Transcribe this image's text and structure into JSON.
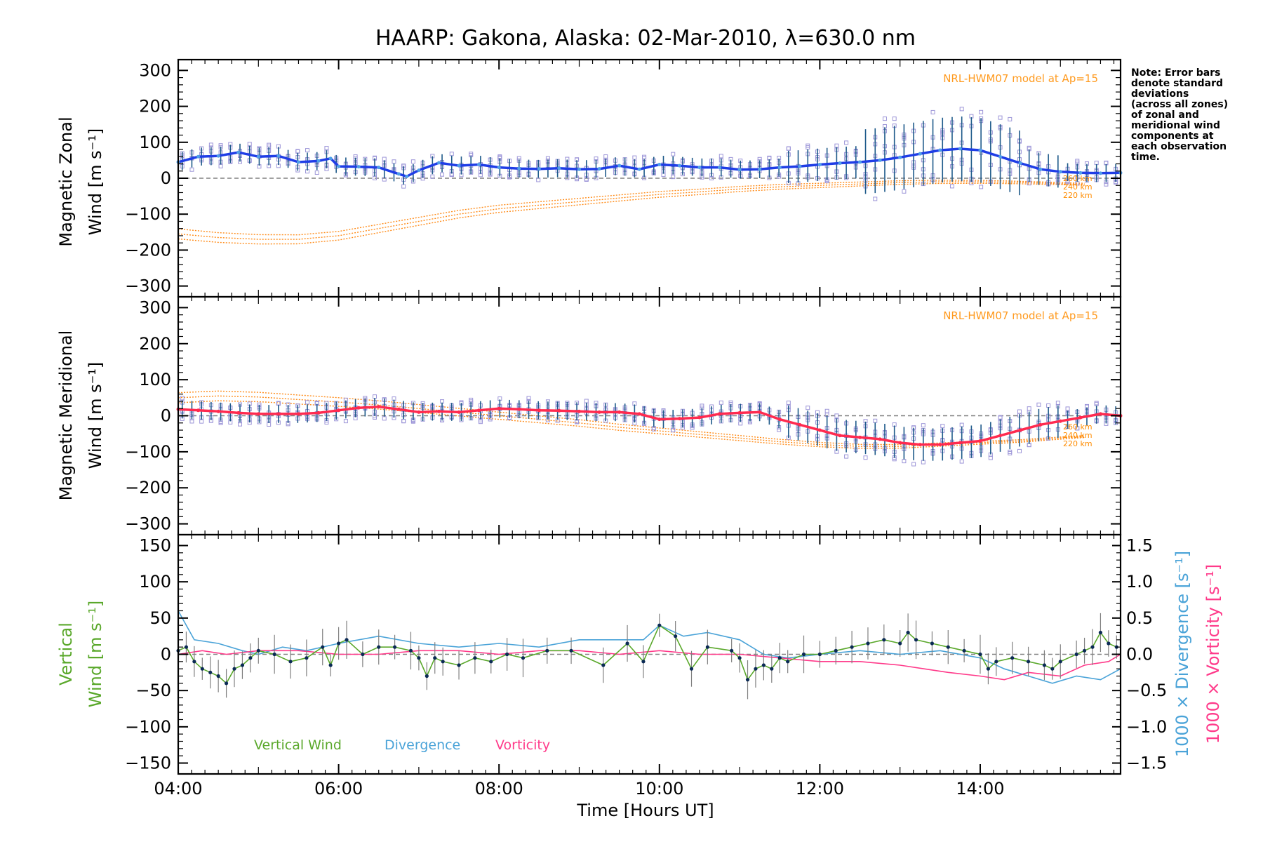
{
  "title": "HAARP: Gakona,  Alaska: 02-Mar-2010, λ=630.0 nm",
  "note": [
    "Note: Error bars",
    "denote standard",
    "deviations",
    "(across all zones)",
    "of zonal and",
    "meridional wind",
    "components at",
    "each observation",
    "time."
  ],
  "colors": {
    "zonal": "#1f3de6",
    "zonal_light": "#4f9ee8",
    "meridional": "#ff2a4f",
    "model": "#ff8c1a",
    "zone_points": "#9d96d8",
    "vertical": "#5aa82b",
    "divergence": "#4aa3d8",
    "vorticity": "#ff3a8a",
    "errorbar_zonal": "#1e5a8a",
    "errorbar_vertical": "#808080"
  },
  "chart_data": [
    {
      "type": "line",
      "panel": "zonal",
      "xlabel": "",
      "ylabel_lines": [
        "Magnetic Zonal",
        "Wind [m s⁻¹]"
      ],
      "xlim": [
        4.0,
        15.75
      ],
      "ylim": [
        -330,
        330
      ],
      "yticks": [
        -300,
        -200,
        -100,
        0,
        100,
        200,
        300
      ],
      "model_label": "NRL-HWM07 model at Ap=15",
      "alt_labels": [
        "260 km",
        "240 km",
        "220 km"
      ],
      "series": [
        {
          "role": "mean",
          "x": [
            4.0,
            4.25,
            4.5,
            4.75,
            5.0,
            5.25,
            5.5,
            5.75,
            5.9,
            6.0,
            6.25,
            6.5,
            6.75,
            6.85,
            7.0,
            7.25,
            7.5,
            7.75,
            8.0,
            8.25,
            8.5,
            8.75,
            9.0,
            9.25,
            9.5,
            9.75,
            10.0,
            10.25,
            10.5,
            10.75,
            11.0,
            11.25,
            11.5,
            11.75,
            12.0,
            12.25,
            12.5,
            12.75,
            13.0,
            13.25,
            13.5,
            13.75,
            14.0,
            14.25,
            14.5,
            14.75,
            15.0,
            15.25,
            15.5,
            15.75
          ],
          "y": [
            45,
            60,
            62,
            72,
            60,
            62,
            45,
            48,
            55,
            33,
            32,
            30,
            12,
            5,
            22,
            43,
            35,
            38,
            30,
            27,
            26,
            28,
            25,
            26,
            35,
            25,
            38,
            35,
            30,
            30,
            24,
            25,
            30,
            33,
            38,
            42,
            45,
            50,
            58,
            68,
            78,
            82,
            78,
            60,
            42,
            25,
            18,
            15,
            14,
            15
          ]
        },
        {
          "role": "model",
          "x": [
            4.0,
            4.5,
            5.0,
            5.5,
            6.0,
            6.5,
            7.0,
            7.5,
            8.0,
            8.5,
            9.0,
            9.5,
            10.0,
            10.5,
            11.0,
            11.5,
            12.0,
            12.5,
            13.0,
            13.5,
            14.0,
            14.5,
            15.0,
            15.5
          ],
          "y": [
            -155,
            -165,
            -170,
            -170,
            -160,
            -140,
            -120,
            -100,
            -85,
            -75,
            -65,
            -55,
            -45,
            -38,
            -30,
            -24,
            -20,
            -16,
            -12,
            -10,
            -10,
            -12,
            -15,
            -18
          ]
        }
      ]
    },
    {
      "type": "line",
      "panel": "meridional",
      "xlabel": "",
      "ylabel_lines": [
        "Magnetic Meridional",
        "Wind [m s⁻¹]"
      ],
      "xlim": [
        4.0,
        15.75
      ],
      "ylim": [
        -330,
        330
      ],
      "yticks": [
        -300,
        -200,
        -100,
        0,
        100,
        200,
        300
      ],
      "model_label": "NRL-HWM07 model at Ap=15",
      "alt_labels": [
        "260 km",
        "240 km",
        "220 km"
      ],
      "series": [
        {
          "role": "mean",
          "x": [
            4.0,
            4.25,
            4.5,
            4.75,
            5.0,
            5.25,
            5.5,
            5.75,
            6.0,
            6.25,
            6.5,
            6.75,
            7.0,
            7.25,
            7.5,
            7.75,
            8.0,
            8.25,
            8.5,
            8.75,
            9.0,
            9.25,
            9.5,
            9.75,
            10.0,
            10.25,
            10.5,
            10.75,
            11.0,
            11.25,
            11.5,
            11.75,
            12.0,
            12.25,
            12.5,
            12.75,
            13.0,
            13.25,
            13.5,
            13.75,
            14.0,
            14.25,
            14.5,
            14.75,
            15.0,
            15.25,
            15.5,
            15.75
          ],
          "y": [
            18,
            15,
            12,
            8,
            5,
            5,
            5,
            8,
            15,
            22,
            25,
            18,
            10,
            12,
            10,
            15,
            20,
            18,
            15,
            14,
            12,
            10,
            10,
            5,
            -10,
            -8,
            -5,
            5,
            8,
            10,
            -10,
            -25,
            -40,
            -55,
            -60,
            -65,
            -75,
            -80,
            -80,
            -75,
            -70,
            -55,
            -40,
            -25,
            -15,
            -5,
            5,
            0
          ]
        },
        {
          "role": "model",
          "x": [
            4.0,
            4.5,
            5.0,
            5.5,
            6.0,
            6.5,
            7.0,
            7.5,
            8.0,
            8.5,
            9.0,
            9.5,
            10.0,
            10.5,
            11.0,
            11.5,
            12.0,
            12.5,
            13.0,
            13.5,
            14.0,
            14.5,
            15.0,
            15.5
          ],
          "y": [
            50,
            55,
            52,
            45,
            38,
            30,
            20,
            10,
            0,
            -10,
            -20,
            -32,
            -42,
            -52,
            -62,
            -72,
            -80,
            -85,
            -85,
            -80,
            -75,
            -70,
            -62,
            -55
          ]
        }
      ]
    },
    {
      "type": "line",
      "panel": "vertical",
      "xlabel": "Time [Hours UT]",
      "ylabel_lines": [
        "Vertical",
        "Wind [m s⁻¹]"
      ],
      "y2label_outer": "1000 × Vorticity [s⁻¹]",
      "y2label_inner": "1000 × Divergence [s⁻¹]",
      "xlim": [
        4.0,
        15.75
      ],
      "ylim": [
        -165,
        165
      ],
      "yticks": [
        -150,
        -100,
        -50,
        0,
        50,
        100,
        150
      ],
      "y2lim": [
        -1.65,
        1.65
      ],
      "y2ticks": [
        -1.5,
        -1.0,
        -0.5,
        0.0,
        0.5,
        1.0,
        1.5
      ],
      "xticks": [
        4,
        6,
        8,
        10,
        12,
        14
      ],
      "xtick_labels": [
        "04:00",
        "06:00",
        "08:00",
        "10:00",
        "12:00",
        "14:00"
      ],
      "legend": [
        "Vertical Wind",
        "Divergence",
        "Vorticity"
      ],
      "series": [
        {
          "name": "Vertical Wind",
          "axis": "left",
          "x": [
            4.0,
            4.1,
            4.2,
            4.3,
            4.4,
            4.5,
            4.6,
            4.7,
            4.8,
            4.9,
            5.0,
            5.2,
            5.4,
            5.6,
            5.8,
            5.9,
            6.0,
            6.1,
            6.3,
            6.5,
            6.7,
            6.9,
            7.0,
            7.1,
            7.2,
            7.3,
            7.5,
            7.7,
            7.9,
            8.1,
            8.3,
            8.6,
            8.9,
            9.3,
            9.6,
            9.8,
            10.0,
            10.2,
            10.4,
            10.6,
            10.9,
            11.0,
            11.1,
            11.2,
            11.3,
            11.4,
            11.5,
            11.6,
            11.8,
            12.0,
            12.2,
            12.4,
            12.6,
            12.8,
            13.0,
            13.1,
            13.2,
            13.4,
            13.6,
            13.8,
            14.0,
            14.1,
            14.2,
            14.4,
            14.6,
            14.8,
            14.9,
            15.0,
            15.2,
            15.3,
            15.4,
            15.5,
            15.6,
            15.7
          ],
          "y": [
            5,
            10,
            -10,
            -20,
            -25,
            -30,
            -40,
            -20,
            -15,
            -5,
            5,
            0,
            -10,
            -5,
            10,
            -15,
            15,
            20,
            0,
            10,
            10,
            5,
            -5,
            -30,
            -5,
            -10,
            -15,
            -5,
            -10,
            0,
            -5,
            5,
            5,
            -15,
            15,
            -10,
            40,
            25,
            -20,
            10,
            5,
            -5,
            -35,
            -20,
            -15,
            -20,
            -5,
            -10,
            0,
            0,
            5,
            10,
            15,
            20,
            15,
            30,
            20,
            15,
            10,
            5,
            0,
            -20,
            -10,
            -5,
            -10,
            -15,
            -20,
            -10,
            0,
            5,
            10,
            30,
            15,
            10
          ]
        },
        {
          "name": "Divergence",
          "axis": "right",
          "x": [
            4.0,
            4.2,
            4.5,
            4.8,
            5.0,
            5.3,
            5.6,
            6.0,
            6.5,
            7.0,
            7.5,
            8.0,
            8.5,
            9.0,
            9.5,
            9.8,
            10.0,
            10.3,
            10.6,
            11.0,
            11.3,
            11.6,
            12.0,
            12.5,
            13.0,
            13.5,
            14.0,
            14.3,
            14.6,
            14.9,
            15.2,
            15.5,
            15.75
          ],
          "y": [
            0.6,
            0.2,
            0.15,
            0.05,
            0.0,
            0.1,
            0.05,
            0.15,
            0.25,
            0.15,
            0.1,
            0.15,
            0.1,
            0.2,
            0.2,
            0.2,
            0.4,
            0.25,
            0.3,
            0.2,
            0.0,
            -0.05,
            0.0,
            0.05,
            0.0,
            0.05,
            -0.05,
            -0.2,
            -0.3,
            -0.4,
            -0.3,
            -0.35,
            -0.2
          ]
        },
        {
          "name": "Vorticity",
          "axis": "right",
          "x": [
            4.0,
            4.3,
            4.6,
            5.0,
            5.5,
            6.0,
            6.5,
            7.0,
            7.5,
            8.0,
            8.5,
            9.0,
            9.5,
            10.0,
            10.5,
            11.0,
            11.5,
            12.0,
            12.5,
            13.0,
            13.3,
            13.6,
            14.0,
            14.3,
            14.6,
            15.0,
            15.3,
            15.6,
            15.75
          ],
          "y": [
            0.0,
            0.05,
            0.0,
            0.05,
            0.05,
            0.0,
            0.0,
            0.05,
            0.05,
            0.0,
            0.05,
            0.05,
            0.0,
            0.05,
            0.0,
            0.0,
            -0.05,
            -0.1,
            -0.1,
            -0.15,
            -0.2,
            -0.25,
            -0.3,
            -0.35,
            -0.25,
            -0.3,
            -0.15,
            -0.1,
            0.0
          ]
        }
      ]
    }
  ]
}
